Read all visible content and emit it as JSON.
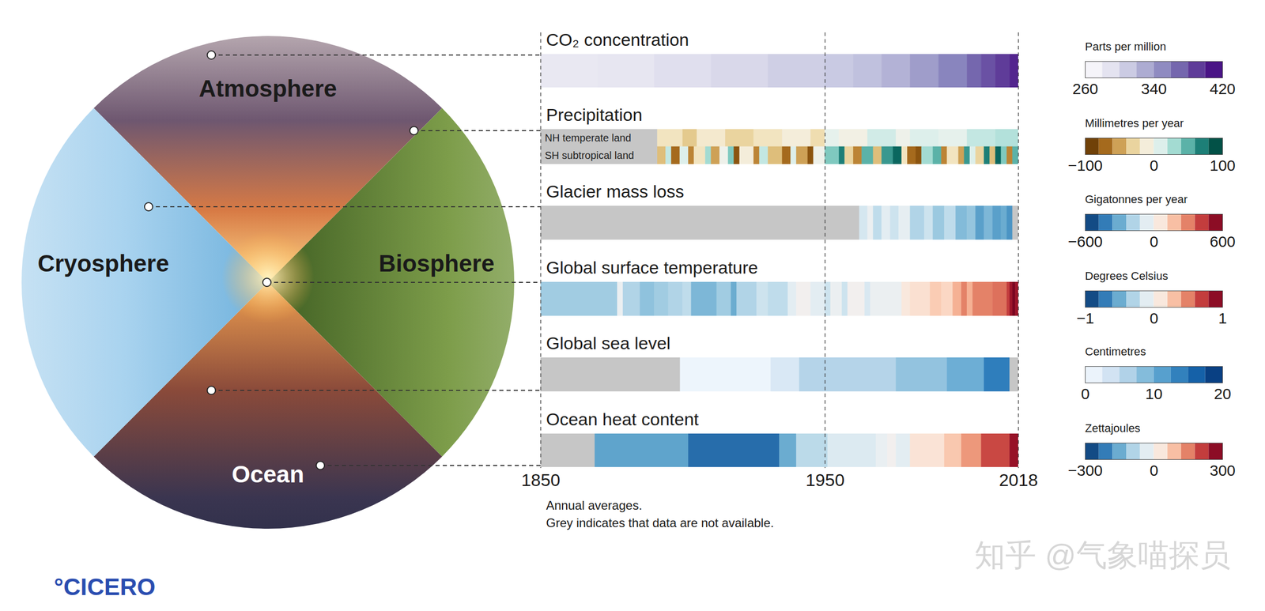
{
  "diagram": {
    "segments": [
      "Atmosphere",
      "Biosphere",
      "Ocean",
      "Cryosphere"
    ],
    "logo": "°CICERO",
    "watermark": "知乎 @气象喵探员"
  },
  "chart_data": {
    "type": "heat_stripes",
    "xlim": [
      1850,
      2018
    ],
    "xticks": [
      1850,
      1950,
      2018
    ],
    "grid": true,
    "notes": [
      "Annual averages.",
      "Grey indicates that data are not available."
    ],
    "rows": [
      {
        "title": "CO₂ concentration",
        "x": [
          1850,
          1870,
          1890,
          1910,
          1930,
          1950,
          1960,
          1970,
          1980,
          1990,
          2000,
          2005,
          2010,
          2015
        ],
        "values": [
          285,
          287,
          294,
          300,
          307,
          311,
          317,
          326,
          339,
          354,
          370,
          380,
          390,
          401
        ],
        "colorbar": {
          "label": "Parts per million",
          "range": [
            260,
            420
          ],
          "ticks": [
            260,
            340,
            420
          ]
        }
      },
      {
        "title": "Precipitation",
        "series": [
          {
            "name": "NH temperate land",
            "x": [
              1850,
              1891,
              1900,
              1905,
              1915,
              1925,
              1935,
              1945,
              1950,
              1955,
              1965,
              1975,
              1980,
              1990,
              2000,
              2010
            ],
            "values": [
              null,
              -20,
              -35,
              -15,
              -30,
              -20,
              -10,
              -25,
              5,
              -5,
              15,
              0,
              10,
              5,
              20,
              25
            ]
          },
          {
            "name": "SH subtropical land",
            "x": [
              1850,
              1891,
              1894,
              1896,
              1899,
              1902,
              1904,
              1908,
              1910,
              1913,
              1916,
              1918,
              1920,
              1925,
              1927,
              1930,
              1935,
              1938,
              1940,
              1944,
              1946,
              1950,
              1955,
              1957,
              1960,
              1963,
              1967,
              1970,
              1974,
              1977,
              1979,
              1982,
              1984,
              1988,
              1991,
              1993,
              1997,
              1999,
              2001,
              2003,
              2006,
              2008,
              2010,
              2012,
              2014,
              2016
            ],
            "values": [
              null,
              -40,
              20,
              -70,
              10,
              -60,
              -20,
              30,
              -50,
              0,
              40,
              -80,
              -10,
              -60,
              20,
              -40,
              -70,
              10,
              -50,
              -80,
              0,
              40,
              70,
              -30,
              -60,
              50,
              -40,
              60,
              80,
              -20,
              -70,
              -80,
              30,
              50,
              -60,
              -20,
              -50,
              60,
              10,
              -30,
              70,
              -40,
              80,
              40,
              -60,
              50
            ]
          }
        ],
        "colorbar": {
          "label": "Millimetres per year",
          "range": [
            -100,
            100
          ],
          "ticks": [
            -100,
            0,
            100
          ]
        }
      },
      {
        "title": "Glacier mass loss",
        "x": [
          1850,
          1962,
          1965,
          1967,
          1970,
          1973,
          1976,
          1980,
          1985,
          1988,
          1992,
          1996,
          2000,
          2003,
          2006,
          2009,
          2012,
          2014,
          2016
        ],
        "values": [
          null,
          -100,
          -30,
          -150,
          -60,
          -120,
          -50,
          -180,
          -120,
          -220,
          -150,
          -260,
          -230,
          -330,
          -270,
          -330,
          -300,
          -360,
          null
        ],
        "colorbar": {
          "label": "Gigatonnes per year",
          "range": [
            -600,
            600
          ],
          "ticks": [
            -600,
            0,
            600
          ]
        }
      },
      {
        "title": "Global surface temperature",
        "x": [
          1850,
          1877,
          1879,
          1885,
          1890,
          1895,
          1900,
          1903,
          1912,
          1917,
          1919,
          1926,
          1930,
          1937,
          1940,
          1945,
          1950,
          1952,
          1956,
          1958,
          1964,
          1966,
          1977,
          1980,
          1987,
          1991,
          1995,
          1998,
          2000,
          2002,
          2009,
          2014,
          2015,
          2016,
          2017
        ],
        "values": [
          -0.35,
          -0.05,
          -0.3,
          -0.4,
          -0.35,
          -0.3,
          -0.25,
          -0.45,
          -0.35,
          -0.5,
          -0.3,
          -0.2,
          -0.25,
          -0.1,
          0,
          -0.1,
          -0.2,
          -0.05,
          -0.2,
          0,
          -0.15,
          -0.05,
          0.1,
          0.15,
          0.25,
          0.2,
          0.35,
          0.5,
          0.35,
          0.5,
          0.55,
          0.7,
          0.85,
          0.95,
          0.85
        ],
        "colorbar": {
          "label": "Degrees Celsius",
          "range": [
            -1,
            1
          ],
          "ticks": [
            -1,
            0,
            1
          ]
        }
      },
      {
        "title": "Global sea level",
        "x": [
          1850,
          1899,
          1931,
          1941,
          1975,
          1993,
          2006,
          2015
        ],
        "values": [
          null,
          1,
          3,
          6,
          8,
          10,
          14,
          null
        ],
        "colorbar": {
          "label": "Centimetres",
          "range": [
            0,
            20
          ],
          "ticks": [
            0,
            10,
            20
          ]
        }
      },
      {
        "title": "Ocean heat content",
        "x": [
          1850,
          1869,
          1902,
          1934,
          1940,
          1951,
          1968,
          1972,
          1975,
          1980,
          1992,
          1998,
          2005,
          2015
        ],
        "values": [
          null,
          -160,
          -230,
          -150,
          -80,
          -40,
          -20,
          0,
          -30,
          40,
          80,
          130,
          200,
          260
        ],
        "colorbar": {
          "label": "Zettajoules",
          "range": [
            -300,
            300
          ],
          "ticks": [
            -300,
            0,
            300
          ]
        }
      }
    ]
  }
}
